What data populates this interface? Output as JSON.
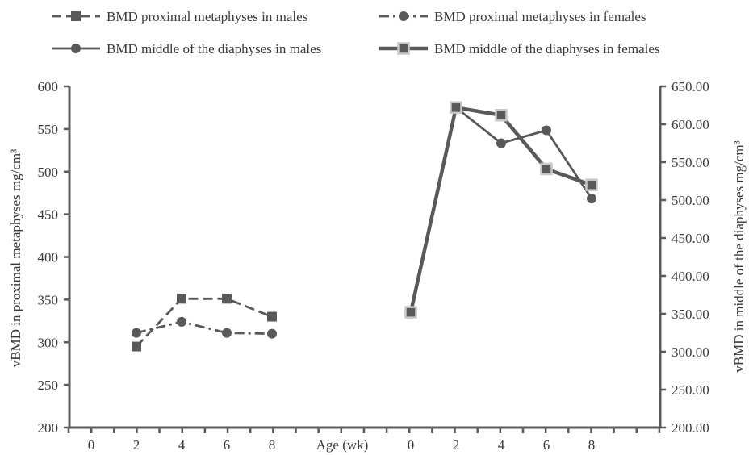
{
  "chart_data": {
    "type": "line",
    "xlabel": "Age (wk)",
    "x_left_ticks": [
      "0",
      "2",
      "4",
      "6",
      "8"
    ],
    "x_right_ticks": [
      "0",
      "2",
      "4",
      "6",
      "8"
    ],
    "left_axis": {
      "label": "vBMD in proximal metaphyses mg/cm³",
      "ylim": [
        200,
        600
      ],
      "ticks": [
        "200",
        "250",
        "300",
        "350",
        "400",
        "450",
        "500",
        "550",
        "600"
      ]
    },
    "right_axis": {
      "label": "vBMD in middle of the diaphyses  mg/cm³",
      "ylim": [
        200,
        650
      ],
      "ticks": [
        "200.00",
        "250.00",
        "300.00",
        "350.00",
        "400.00",
        "450.00",
        "500.00",
        "550.00",
        "600.00",
        "650.00"
      ]
    },
    "series": [
      {
        "name": "BMD proximal metaphyses in males",
        "axis": "left",
        "panel": "left",
        "x": [
          2,
          4,
          6,
          8
        ],
        "values": [
          295,
          351,
          351,
          330
        ],
        "style": "dashed",
        "marker": "square",
        "color": "#595959"
      },
      {
        "name": "BMD proximal metaphyses in females",
        "axis": "left",
        "panel": "left",
        "x": [
          2,
          4,
          6,
          8
        ],
        "values": [
          311,
          324,
          311,
          310
        ],
        "style": "dashdot",
        "marker": "circle",
        "color": "#595959"
      },
      {
        "name": "BMD middle of the diaphyses in males",
        "axis": "right",
        "panel": "right",
        "x": [
          2,
          4,
          6,
          8
        ],
        "values": [
          622,
          575,
          592,
          502
        ],
        "style": "solid",
        "marker": "circle",
        "color": "#595959"
      },
      {
        "name": "BMD middle of the diaphyses in females",
        "axis": "right",
        "panel": "right",
        "x": [
          0,
          2,
          4,
          6,
          8
        ],
        "values": [
          352,
          622,
          612,
          541,
          520
        ],
        "style": "thick",
        "marker": "square-light",
        "color": "#595959"
      }
    ],
    "legend_position": "top"
  }
}
